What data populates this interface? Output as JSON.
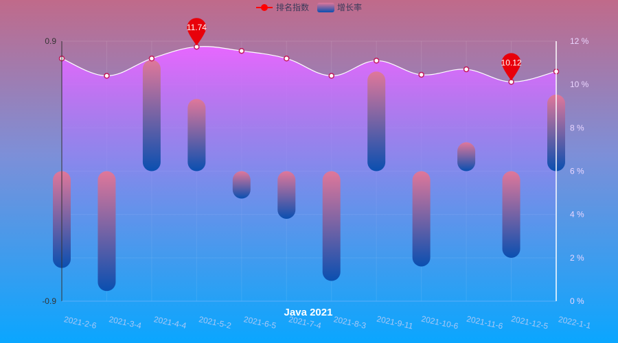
{
  "chart_data": {
    "type": "bar+line",
    "title": "Java 2021",
    "legend": {
      "placement": "top-center",
      "items": [
        {
          "name": "排名指数",
          "kind": "line",
          "color": "#ff0000"
        },
        {
          "name": "增长率",
          "kind": "bar",
          "color": "#3a5ea8"
        }
      ]
    },
    "categories": [
      "2021-2-6",
      "2021-3-4",
      "2021-4-4",
      "2021-5-2",
      "2021-6-5",
      "2021-7-4",
      "2021-8-3",
      "2021-9-11",
      "2021-10-6",
      "2021-11-6",
      "2021-12-5",
      "2022-1-1"
    ],
    "y_left": {
      "min": -0.9,
      "max": 0.9,
      "labels": [
        "0.9",
        "-0.9"
      ]
    },
    "y_right": {
      "min": 0,
      "max": 12,
      "ticks": [
        "0 %",
        "2 %",
        "4 %",
        "6 %",
        "8 %",
        "10 %",
        "12 %"
      ]
    },
    "series": [
      {
        "name": "排名指数",
        "axis": "right",
        "type": "line",
        "smooth": true,
        "area": true,
        "values": [
          11.2,
          10.4,
          11.2,
          11.74,
          11.55,
          11.2,
          10.4,
          11.1,
          10.45,
          10.7,
          10.12,
          10.6
        ],
        "markers": [
          {
            "label": "11.74",
            "index": 3
          },
          {
            "label": "10.12",
            "index": 10
          }
        ]
      },
      {
        "name": "增长率",
        "axis": "left",
        "type": "bar",
        "values": [
          -0.67,
          -0.83,
          0.77,
          0.5,
          -0.19,
          -0.33,
          -0.76,
          0.69,
          -0.66,
          0.2,
          -0.6,
          0.53
        ]
      }
    ]
  }
}
